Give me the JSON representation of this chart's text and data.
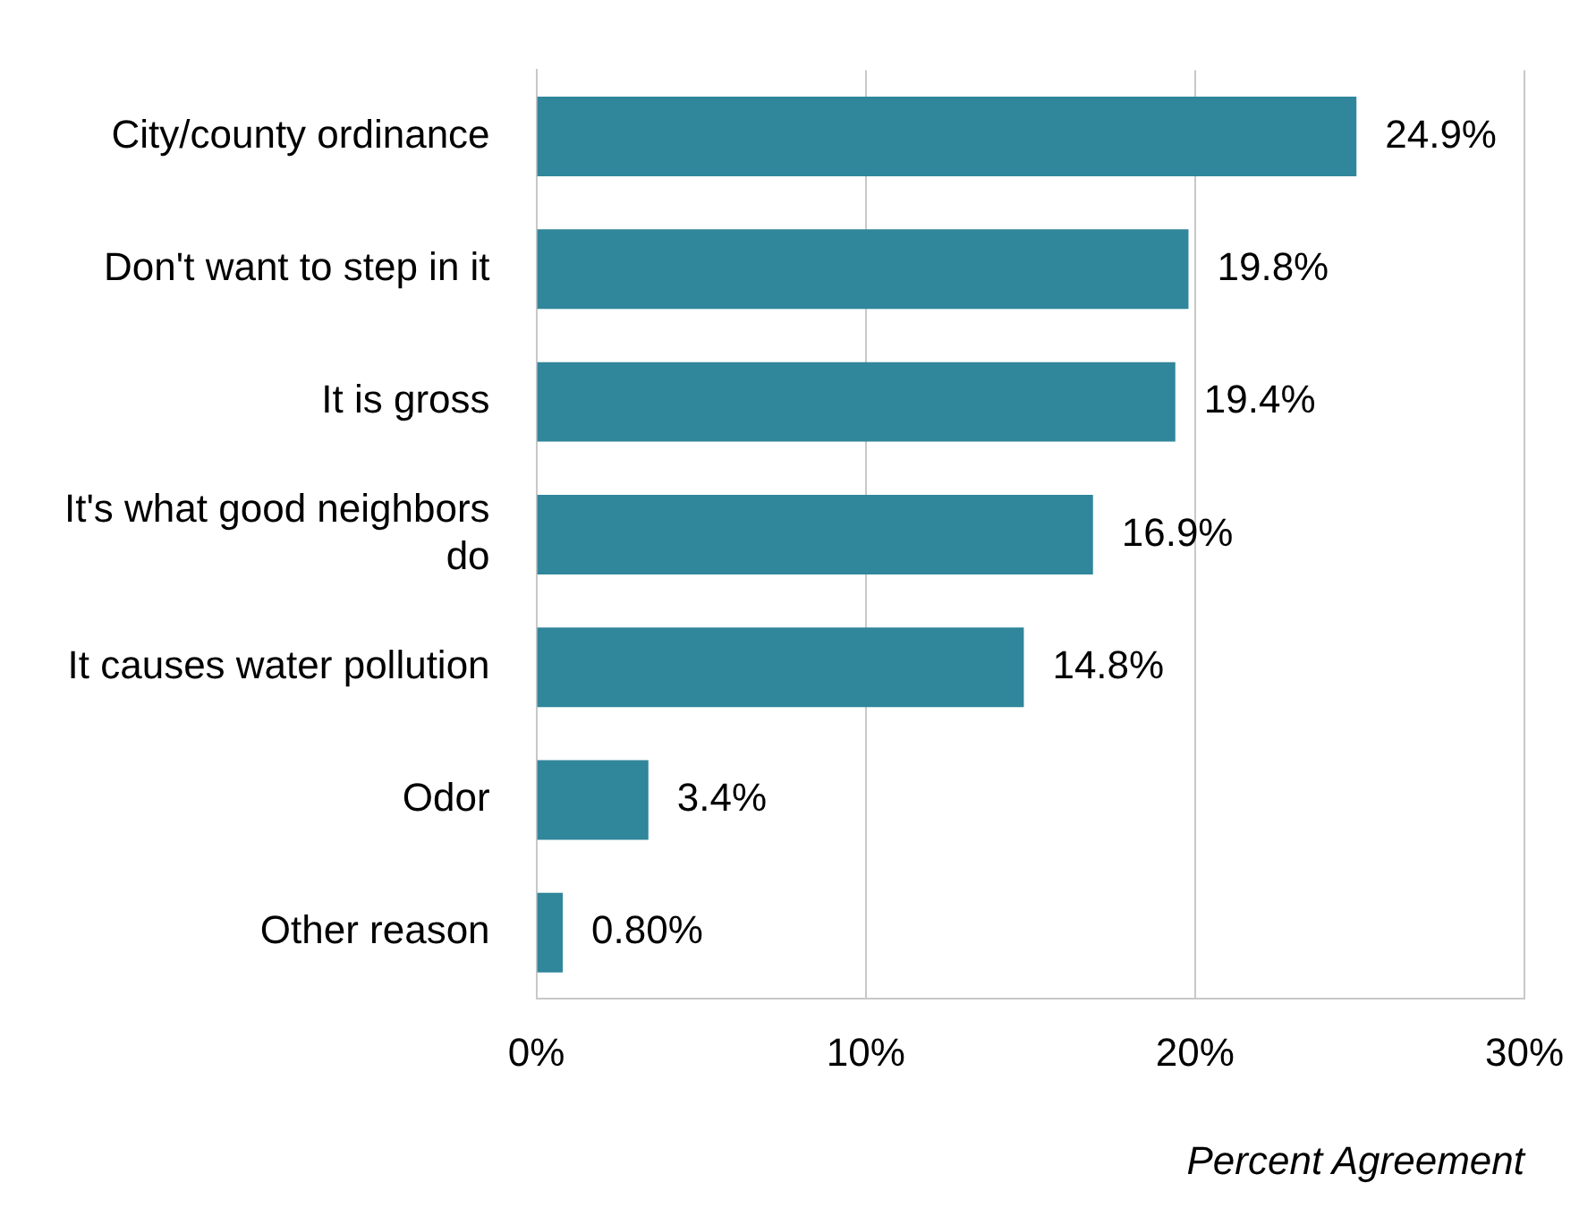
{
  "chart_data": {
    "type": "bar",
    "orientation": "horizontal",
    "categories": [
      "City/county ordinance",
      "Don't want to step in it",
      "It is gross",
      "It's what good neighbors do",
      "It causes water pollution",
      "Odor",
      "Other reason"
    ],
    "values": [
      24.9,
      19.8,
      19.4,
      16.9,
      14.8,
      3.4,
      0.8
    ],
    "value_labels": [
      "24.9%",
      "19.8%",
      "19.4%",
      "16.9%",
      "14.8%",
      "3.4%",
      "0.80%"
    ],
    "color": "#30869b",
    "xlim": [
      0,
      30
    ],
    "xticks": [
      {
        "value": 0,
        "label": "0%"
      },
      {
        "value": 10,
        "label": "10%"
      },
      {
        "value": 20,
        "label": "20%"
      },
      {
        "value": 30,
        "label": "30%"
      }
    ],
    "xlabel": "Percent Agreement",
    "grid": "x"
  }
}
